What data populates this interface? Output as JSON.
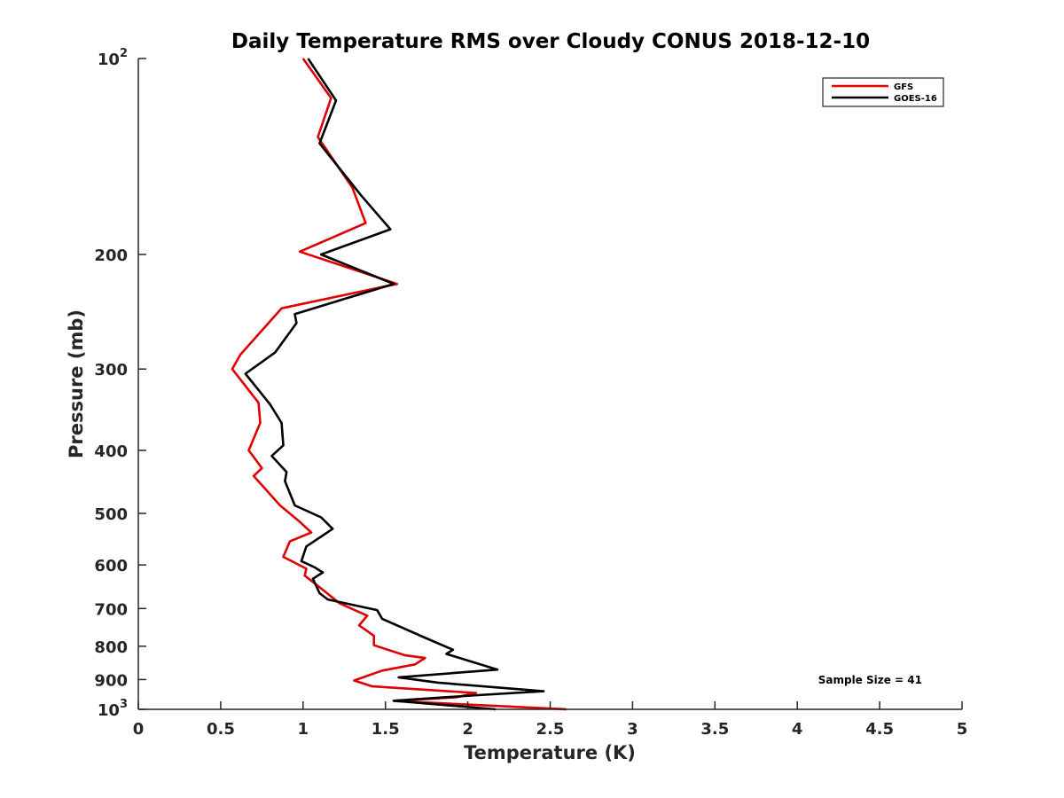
{
  "chart_data": {
    "type": "line",
    "title": "Daily Temperature RMS over Cloudy CONUS 2018-12-10",
    "xlabel": "Temperature (K)",
    "ylabel": "Pressure (mb)",
    "xlim": [
      0,
      5
    ],
    "ylim": [
      100,
      1000
    ],
    "y_scale": "log",
    "y_reversed": true,
    "grid": false,
    "legend_position": "top-right",
    "x_ticks": [
      {
        "value": 0,
        "label": "0"
      },
      {
        "value": 0.5,
        "label": "0.5"
      },
      {
        "value": 1,
        "label": "1"
      },
      {
        "value": 1.5,
        "label": "1.5"
      },
      {
        "value": 2,
        "label": "2"
      },
      {
        "value": 2.5,
        "label": "2.5"
      },
      {
        "value": 3,
        "label": "3"
      },
      {
        "value": 3.5,
        "label": "3.5"
      },
      {
        "value": 4,
        "label": "4"
      },
      {
        "value": 4.5,
        "label": "4.5"
      },
      {
        "value": 5,
        "label": "5"
      }
    ],
    "y_ticks": [
      {
        "value": 100,
        "base": "10",
        "exp": "2"
      },
      {
        "value": 200,
        "base": "200",
        "exp": ""
      },
      {
        "value": 300,
        "base": "300",
        "exp": ""
      },
      {
        "value": 400,
        "base": "400",
        "exp": ""
      },
      {
        "value": 500,
        "base": "500",
        "exp": ""
      },
      {
        "value": 600,
        "base": "600",
        "exp": ""
      },
      {
        "value": 700,
        "base": "700",
        "exp": ""
      },
      {
        "value": 800,
        "base": "800",
        "exp": ""
      },
      {
        "value": 900,
        "base": "900",
        "exp": ""
      },
      {
        "value": 1000,
        "base": "10",
        "exp": "3"
      }
    ],
    "series": [
      {
        "name": "GFS",
        "color": "#e00000",
        "points": [
          [
            1.0,
            100
          ],
          [
            1.17,
            115
          ],
          [
            1.09,
            132
          ],
          [
            1.3,
            158
          ],
          [
            1.38,
            179
          ],
          [
            0.98,
            198
          ],
          [
            1.57,
            222
          ],
          [
            0.87,
            242
          ],
          [
            0.62,
            285
          ],
          [
            0.57,
            300
          ],
          [
            0.73,
            338
          ],
          [
            0.74,
            363
          ],
          [
            0.67,
            400
          ],
          [
            0.75,
            426
          ],
          [
            0.7,
            438
          ],
          [
            0.86,
            486
          ],
          [
            0.98,
            515
          ],
          [
            1.05,
            535
          ],
          [
            0.92,
            552
          ],
          [
            0.88,
            583
          ],
          [
            1.02,
            608
          ],
          [
            1.01,
            623
          ],
          [
            1.12,
            655
          ],
          [
            1.22,
            687
          ],
          [
            1.39,
            718
          ],
          [
            1.34,
            743
          ],
          [
            1.43,
            771
          ],
          [
            1.43,
            797
          ],
          [
            1.62,
            826
          ],
          [
            1.74,
            834
          ],
          [
            1.68,
            853
          ],
          [
            1.48,
            872
          ],
          [
            1.31,
            903
          ],
          [
            1.42,
            922
          ],
          [
            2.05,
            944
          ],
          [
            1.93,
            958
          ],
          [
            1.55,
            971
          ],
          [
            2.6,
            1000
          ]
        ]
      },
      {
        "name": "GOES-16",
        "color": "#000000",
        "points": [
          [
            1.03,
            100
          ],
          [
            1.2,
            116
          ],
          [
            1.1,
            135
          ],
          [
            1.35,
            162
          ],
          [
            1.53,
            183
          ],
          [
            1.11,
            200
          ],
          [
            1.55,
            222
          ],
          [
            0.95,
            247
          ],
          [
            0.96,
            255
          ],
          [
            0.83,
            283
          ],
          [
            0.65,
            305
          ],
          [
            0.8,
            340
          ],
          [
            0.87,
            363
          ],
          [
            0.88,
            393
          ],
          [
            0.81,
            408
          ],
          [
            0.9,
            432
          ],
          [
            0.89,
            446
          ],
          [
            0.95,
            486
          ],
          [
            1.11,
            507
          ],
          [
            1.18,
            528
          ],
          [
            1.02,
            562
          ],
          [
            0.99,
            592
          ],
          [
            1.07,
            605
          ],
          [
            1.12,
            616
          ],
          [
            1.06,
            630
          ],
          [
            1.1,
            663
          ],
          [
            1.15,
            678
          ],
          [
            1.45,
            704
          ],
          [
            1.48,
            726
          ],
          [
            1.75,
            778
          ],
          [
            1.91,
            810
          ],
          [
            1.87,
            822
          ],
          [
            2.18,
            869
          ],
          [
            1.58,
            893
          ],
          [
            1.82,
            910
          ],
          [
            2.46,
            938
          ],
          [
            2.06,
            951
          ],
          [
            1.55,
            970
          ],
          [
            2.17,
            1000
          ]
        ]
      }
    ],
    "annotation": "Sample Size = 41"
  }
}
